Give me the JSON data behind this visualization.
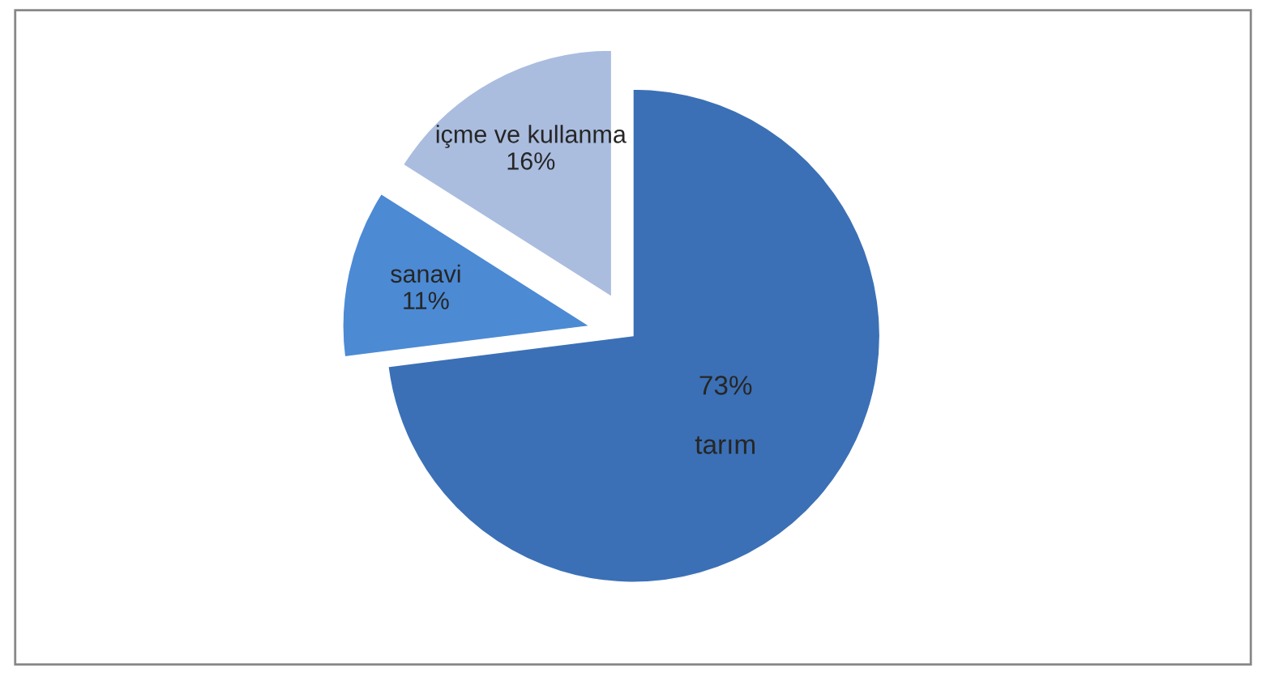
{
  "chart_data": {
    "type": "pie",
    "categories": [
      "tarım",
      "sanavi",
      "içme ve kullanma"
    ],
    "values": [
      73,
      11,
      16
    ],
    "colors": [
      "#3b70b6",
      "#4c8ad4",
      "#aabddf"
    ],
    "value_labels": [
      "73%",
      "11%",
      "16%"
    ],
    "legend": false
  }
}
